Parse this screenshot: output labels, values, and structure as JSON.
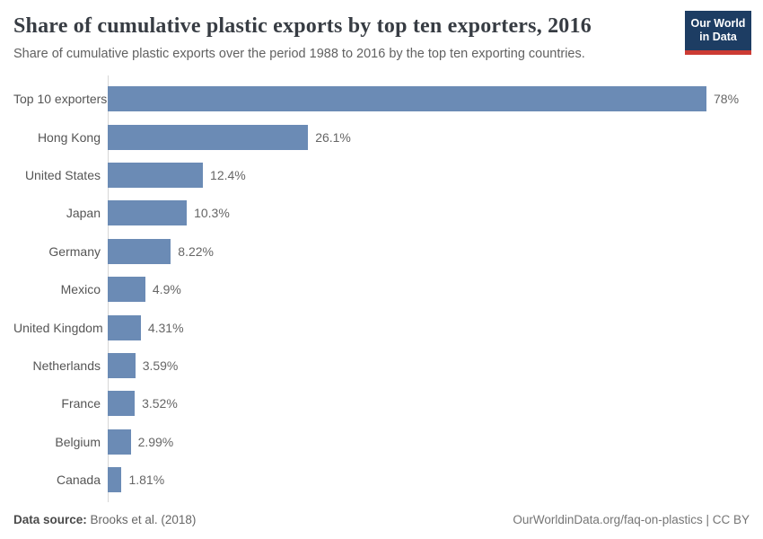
{
  "header": {
    "title": "Share of cumulative plastic exports by top ten exporters, 2016",
    "subtitle": "Share of cumulative plastic exports over the period 1988 to 2016 by the top ten exporting countries.",
    "logo": {
      "line1": "Our World",
      "line2": "in Data",
      "bg_color": "#1d3d63",
      "accent_color": "#cc3b34"
    }
  },
  "chart_data": {
    "type": "bar",
    "orientation": "horizontal",
    "title": "Share of cumulative plastic exports by top ten exporters, 2016",
    "xlabel": "",
    "ylabel": "",
    "categories": [
      "Top 10 exporters",
      "Hong Kong",
      "United States",
      "Japan",
      "Germany",
      "Mexico",
      "United Kingdom",
      "Netherlands",
      "France",
      "Belgium",
      "Canada"
    ],
    "values": [
      78,
      26.1,
      12.4,
      10.3,
      8.22,
      4.9,
      4.31,
      3.59,
      3.52,
      2.99,
      1.81
    ],
    "value_labels": [
      "78%",
      "26.1%",
      "12.4%",
      "10.3%",
      "8.22%",
      "4.9%",
      "4.31%",
      "3.59%",
      "3.52%",
      "2.99%",
      "1.81%"
    ],
    "xlim": [
      0,
      78
    ],
    "grid": false,
    "legend": "none",
    "bar_color": "#6b8bb5",
    "axis_line_color": "#d7d7d7"
  },
  "footer": {
    "source_label": "Data source:",
    "source_value": "Brooks et al. (2018)",
    "right_text": "OurWorldinData.org/faq-on-plastics | CC BY"
  }
}
